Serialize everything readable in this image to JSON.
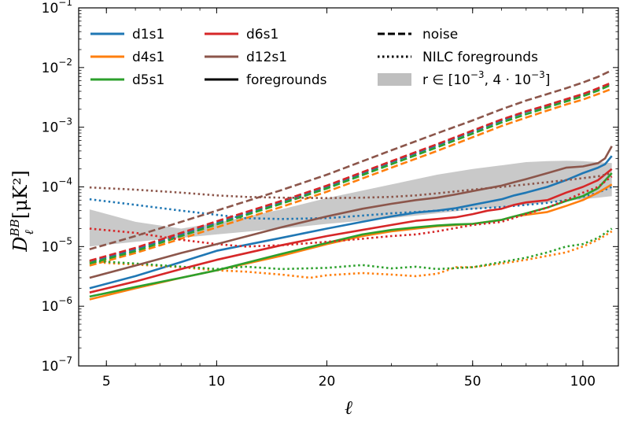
{
  "chart_data": {
    "type": "line",
    "xscale": "log",
    "yscale": "log",
    "xlim": [
      4.2,
      125
    ],
    "ylim": [
      1e-07,
      0.1
    ],
    "xlabel": "ℓ",
    "ylabel": "D",
    "ylabel_sub": "ℓ",
    "ylabel_sup": "BB",
    "ylabel_units": "[μK²]",
    "x_ticks": [
      {
        "value": 5,
        "label": "5"
      },
      {
        "value": 10,
        "label": "10"
      },
      {
        "value": 20,
        "label": "20"
      },
      {
        "value": 50,
        "label": "50"
      },
      {
        "value": 100,
        "label": "100"
      }
    ],
    "y_ticks": [
      {
        "value": 1e-07,
        "base": "10",
        "exp": "−7"
      },
      {
        "value": 1e-06,
        "base": "10",
        "exp": "−6"
      },
      {
        "value": 1e-05,
        "base": "10",
        "exp": "−5"
      },
      {
        "value": 0.0001,
        "base": "10",
        "exp": "−4"
      },
      {
        "value": 0.001,
        "base": "10",
        "exp": "−3"
      },
      {
        "value": 0.01,
        "base": "10",
        "exp": "−2"
      },
      {
        "value": 0.1,
        "base": "10",
        "exp": "−1"
      }
    ],
    "colors": {
      "d1s1": "#1f77b4",
      "d4s1": "#ff7f0e",
      "d5s1": "#2ca02c",
      "d6s1": "#d62728",
      "d12s1": "#8c564b",
      "band": "#bfbfbf"
    },
    "legend": {
      "models": [
        {
          "name": "d1s1"
        },
        {
          "name": "d4s1"
        },
        {
          "name": "d5s1"
        },
        {
          "name": "d6s1"
        },
        {
          "name": "d12s1"
        }
      ],
      "styles": [
        {
          "label": "foregrounds",
          "style": "solid"
        },
        {
          "label": "noise",
          "style": "dashed"
        },
        {
          "label": "NILC foregrounds",
          "style": "dotted"
        }
      ],
      "band_label": "r ∈ [10",
      "band_label_exp1": "−3",
      "band_label_mid": ", 4 · 10",
      "band_label_exp2": "−3",
      "band_label_end": "]"
    },
    "band": {
      "x": [
        4.5,
        6,
        8,
        10,
        15,
        20,
        30,
        40,
        50,
        60,
        70,
        80,
        90,
        100,
        110,
        120
      ],
      "lower": [
        1e-05,
        1.2e-05,
        1.4e-05,
        1.6e-05,
        2e-05,
        2.4e-05,
        3e-05,
        3.6e-05,
        4.2e-05,
        4.6e-05,
        5e-05,
        5.5e-05,
        5.8e-05,
        6.2e-05,
        6.6e-05,
        7e-05
      ],
      "upper": [
        4.2e-05,
        2.6e-05,
        2e-05,
        2.5e-05,
        4.2e-05,
        6.5e-05,
        0.00011,
        0.00016,
        0.0002,
        0.00023,
        0.00026,
        0.00027,
        0.000275,
        0.00027,
        0.00026,
        0.00025
      ]
    },
    "series": [
      {
        "model": "d1s1",
        "kind": "foregrounds",
        "x": [
          4.5,
          6,
          8,
          10,
          15,
          20,
          25,
          30,
          35,
          40,
          45,
          50,
          55,
          60,
          65,
          70,
          75,
          80,
          90,
          100,
          110,
          115,
          120
        ],
        "values": [
          2e-06,
          3.2e-06,
          5.5e-06,
          8.5e-06,
          1.4e-05,
          2e-05,
          2.6e-05,
          3.2e-05,
          3.7e-05,
          4e-05,
          4.4e-05,
          5e-05,
          5.6e-05,
          6.2e-05,
          7.2e-05,
          8e-05,
          9e-05,
          0.0001,
          0.00013,
          0.00017,
          0.00021,
          0.00024,
          0.00033
        ]
      },
      {
        "model": "d1s1",
        "kind": "noise",
        "x": [
          4.5,
          6,
          8,
          10,
          15,
          20,
          30,
          40,
          50,
          60,
          70,
          80,
          90,
          100,
          110,
          120
        ],
        "values": [
          5.5e-06,
          9e-06,
          1.6e-05,
          2.5e-05,
          5.5e-05,
          0.0001,
          0.00026,
          0.0005,
          0.00085,
          0.0013,
          0.0018,
          0.0023,
          0.0029,
          0.0035,
          0.0043,
          0.0053
        ]
      },
      {
        "model": "d1s1",
        "kind": "nilc",
        "x": [
          4.5,
          6,
          8,
          10,
          12,
          15,
          20,
          25,
          30,
          35,
          40,
          50,
          60,
          70,
          80,
          90,
          100,
          110,
          120
        ],
        "values": [
          6.2e-05,
          5e-05,
          4e-05,
          3.4e-05,
          3e-05,
          2.9e-05,
          3e-05,
          3.3e-05,
          3.6e-05,
          3.8e-05,
          4e-05,
          4.3e-05,
          4.6e-05,
          5e-05,
          5.4e-05,
          6e-05,
          6.8e-05,
          8e-05,
          0.0001
        ]
      },
      {
        "model": "d4s1",
        "kind": "foregrounds",
        "x": [
          4.5,
          6,
          8,
          10,
          15,
          20,
          25,
          30,
          35,
          40,
          45,
          50,
          60,
          65,
          70,
          80,
          90,
          100,
          110,
          120
        ],
        "values": [
          1.3e-06,
          2e-06,
          3e-06,
          4e-06,
          7e-06,
          1.1e-05,
          1.5e-05,
          1.8e-05,
          2e-05,
          2.2e-05,
          2.3e-05,
          2.4e-05,
          2.8e-05,
          3.2e-05,
          3.4e-05,
          3.8e-05,
          4.8e-05,
          6e-05,
          8e-05,
          0.00011
        ]
      },
      {
        "model": "d4s1",
        "kind": "noise",
        "x": [
          4.5,
          6,
          8,
          10,
          15,
          20,
          30,
          40,
          50,
          60,
          70,
          80,
          90,
          100,
          110,
          120
        ],
        "values": [
          4.8e-06,
          7.8e-06,
          1.35e-05,
          2.1e-05,
          4.6e-05,
          8.3e-05,
          0.00021,
          0.0004,
          0.00068,
          0.00105,
          0.00145,
          0.0019,
          0.0024,
          0.0029,
          0.0036,
          0.0044
        ]
      },
      {
        "model": "d4s1",
        "kind": "nilc",
        "x": [
          4.5,
          6,
          8,
          10,
          12,
          15,
          18,
          20,
          25,
          30,
          35,
          40,
          45,
          50,
          60,
          70,
          80,
          90,
          100,
          110,
          120
        ],
        "values": [
          5.5e-06,
          5e-06,
          4.5e-06,
          4e-06,
          3.8e-06,
          3.4e-06,
          3e-06,
          3.3e-06,
          3.6e-06,
          3.4e-06,
          3.2e-06,
          3.5e-06,
          4.5e-06,
          4.5e-06,
          5.2e-06,
          6e-06,
          7e-06,
          8e-06,
          1e-05,
          1.3e-05,
          1.8e-05
        ]
      },
      {
        "model": "d5s1",
        "kind": "foregrounds",
        "x": [
          4.5,
          6,
          8,
          10,
          15,
          20,
          25,
          30,
          35,
          40,
          45,
          50,
          55,
          60,
          65,
          70,
          80,
          90,
          100,
          110,
          120
        ],
        "values": [
          1.45e-06,
          2.1e-06,
          3e-06,
          4e-06,
          7.5e-06,
          1.15e-05,
          1.6e-05,
          1.9e-05,
          2.1e-05,
          2.25e-05,
          2.35e-05,
          2.4e-05,
          2.6e-05,
          2.8e-05,
          3.2e-05,
          3.6e-05,
          4.5e-05,
          5.8e-05,
          7e-05,
          9.5e-05,
          0.00017
        ]
      },
      {
        "model": "d5s1",
        "kind": "noise",
        "x": [
          4.5,
          6,
          8,
          10,
          15,
          20,
          30,
          40,
          50,
          60,
          70,
          80,
          90,
          100,
          110,
          120
        ],
        "values": [
          5.2e-06,
          8.4e-06,
          1.5e-05,
          2.35e-05,
          5.2e-05,
          9.4e-05,
          0.00024,
          0.00046,
          0.00078,
          0.0012,
          0.00165,
          0.00215,
          0.0027,
          0.0033,
          0.0041,
          0.0052
        ]
      },
      {
        "model": "d5s1",
        "kind": "nilc",
        "x": [
          4.5,
          6,
          8,
          10,
          12,
          15,
          20,
          25,
          30,
          35,
          40,
          50,
          60,
          70,
          80,
          90,
          100,
          110,
          120
        ],
        "values": [
          5.8e-06,
          5.2e-06,
          4.6e-06,
          4.2e-06,
          4.6e-06,
          4.2e-06,
          4.4e-06,
          4.9e-06,
          4.3e-06,
          4.6e-06,
          4.2e-06,
          4.5e-06,
          5.5e-06,
          6.5e-06,
          8e-06,
          1e-05,
          1.1e-05,
          1.4e-05,
          2e-05
        ]
      },
      {
        "model": "d6s1",
        "kind": "foregrounds",
        "x": [
          4.5,
          6,
          8,
          10,
          15,
          20,
          25,
          30,
          35,
          40,
          45,
          50,
          55,
          60,
          65,
          70,
          80,
          90,
          100,
          110,
          120
        ],
        "values": [
          1.7e-06,
          2.6e-06,
          4.2e-06,
          6e-06,
          1.05e-05,
          1.5e-05,
          1.9e-05,
          2.3e-05,
          2.7e-05,
          2.9e-05,
          3.1e-05,
          3.5e-05,
          4e-05,
          4.3e-05,
          5e-05,
          5.5e-05,
          6e-05,
          8e-05,
          0.0001,
          0.00013,
          0.0002
        ]
      },
      {
        "model": "d6s1",
        "kind": "noise",
        "x": [
          4.5,
          6,
          8,
          10,
          15,
          20,
          30,
          40,
          50,
          60,
          70,
          80,
          90,
          100,
          110,
          120
        ],
        "values": [
          5.8e-06,
          9.5e-06,
          1.7e-05,
          2.65e-05,
          5.8e-05,
          0.000105,
          0.00027,
          0.00052,
          0.00088,
          0.00135,
          0.00185,
          0.00235,
          0.00295,
          0.0036,
          0.0045,
          0.0056
        ]
      },
      {
        "model": "d6s1",
        "kind": "nilc",
        "x": [
          4.5,
          6,
          8,
          10,
          12,
          15,
          20,
          25,
          30,
          35,
          40,
          50,
          60,
          70,
          80,
          90,
          100,
          110,
          120
        ],
        "values": [
          2e-05,
          1.7e-05,
          1.3e-05,
          1.1e-05,
          1e-05,
          1.05e-05,
          1.2e-05,
          1.35e-05,
          1.5e-05,
          1.6e-05,
          1.8e-05,
          2.3e-05,
          2.6e-05,
          3.5e-05,
          4.5e-05,
          6e-05,
          8e-05,
          0.0001,
          0.00015
        ]
      },
      {
        "model": "d12s1",
        "kind": "foregrounds",
        "x": [
          4.5,
          6,
          8,
          10,
          15,
          20,
          25,
          30,
          35,
          40,
          45,
          50,
          55,
          60,
          65,
          70,
          80,
          90,
          100,
          110,
          115,
          120
        ],
        "values": [
          3e-06,
          4.8e-06,
          7.8e-06,
          1.1e-05,
          2.1e-05,
          3.2e-05,
          4.3e-05,
          5.2e-05,
          6e-05,
          6.6e-05,
          7.5e-05,
          8.5e-05,
          9.5e-05,
          0.000105,
          0.00012,
          0.000135,
          0.00017,
          0.00021,
          0.00022,
          0.00025,
          0.0003,
          0.00048
        ]
      },
      {
        "model": "d12s1",
        "kind": "noise",
        "x": [
          4.5,
          6,
          8,
          10,
          15,
          20,
          30,
          40,
          50,
          60,
          70,
          80,
          90,
          100,
          110,
          120
        ],
        "values": [
          9e-06,
          1.5e-05,
          2.6e-05,
          4e-05,
          8.8e-05,
          0.00016,
          0.00041,
          0.00079,
          0.0013,
          0.002,
          0.0028,
          0.0036,
          0.0045,
          0.0056,
          0.007,
          0.009
        ]
      },
      {
        "model": "d12s1",
        "kind": "nilc",
        "x": [
          4.5,
          6,
          8,
          10,
          12,
          15,
          20,
          25,
          30,
          35,
          40,
          50,
          60,
          70,
          80,
          90,
          100,
          110,
          120
        ],
        "values": [
          9.8e-05,
          9e-05,
          8e-05,
          7.2e-05,
          6.8e-05,
          6.6e-05,
          6.5e-05,
          6.6e-05,
          6.8e-05,
          7.2e-05,
          7.8e-05,
          9e-05,
          0.0001,
          0.00011,
          0.00012,
          0.00013,
          0.00014,
          0.00015,
          0.00017
        ]
      }
    ]
  }
}
